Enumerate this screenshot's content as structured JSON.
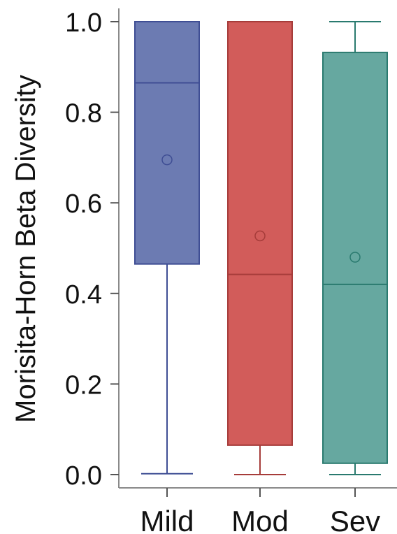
{
  "chart_data": {
    "type": "box",
    "ylabel": "Morisita-Horn Beta Diversity",
    "xlabel": "",
    "ylim": [
      0.0,
      1.0
    ],
    "yticks": [
      "0.0",
      "0.2",
      "0.4",
      "0.6",
      "0.8",
      "1.0"
    ],
    "categories": [
      "Mild",
      "Mod",
      "Sev"
    ],
    "boxes": [
      {
        "label": "Mild",
        "min": 0.002,
        "q1": 0.465,
        "median": 0.865,
        "q3": 1.0,
        "max": 1.0,
        "mean": 0.695,
        "color": "#6c7bb2",
        "edge": "#3f4e94"
      },
      {
        "label": "Mod",
        "min": 0.0,
        "q1": 0.065,
        "median": 0.442,
        "q3": 1.0,
        "max": 1.0,
        "mean": 0.527,
        "color": "#d25c5a",
        "edge": "#a63c3a"
      },
      {
        "label": "Sev",
        "min": 0.0,
        "q1": 0.025,
        "median": 0.42,
        "q3": 0.932,
        "max": 1.0,
        "mean": 0.48,
        "color": "#66a8a0",
        "edge": "#2a7a6f"
      }
    ],
    "grid": false,
    "legend": "none"
  }
}
